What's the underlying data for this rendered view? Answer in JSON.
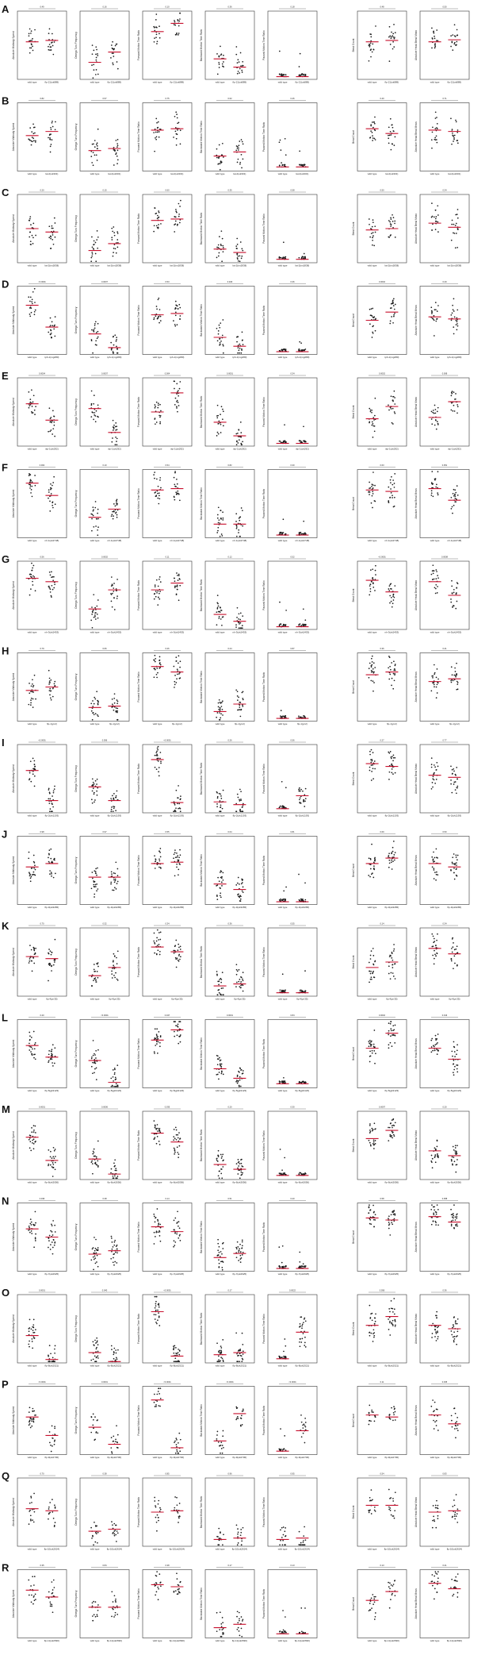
{
  "figure": {
    "metric_axis_labels": [
      "Absolute Midbody Speed",
      "Omega Turn Frequency",
      "Forward Motion Time Ratio",
      "Backward Motion Time Ratio",
      "Paused Motion Time Ratio",
      "Bend Count",
      "Absolute Head Bend Mean"
    ],
    "colors": {
      "point": "#1a1a1a",
      "median": "#c8102e",
      "axis": "#333333",
      "text": "#222222"
    }
  },
  "chart_data": {
    "type": "scatter",
    "plot_style": "strip plot with median line (red)",
    "grid": false,
    "rows": [
      {
        "panel": "A",
        "mutant": "flp-21(ok889)",
        "pvalues": [
          "0.49",
          "0.16",
          "0.10",
          "0.36",
          "0.18",
          "0.48",
          "0.50"
        ],
        "wt_median": [
          0.55,
          0.25,
          0.7,
          0.3,
          0.04,
          0.55,
          0.55
        ],
        "mut_median": [
          0.57,
          0.4,
          0.82,
          0.18,
          0.04,
          0.57,
          0.58
        ]
      },
      {
        "panel": "B",
        "mutant": "lat-2(ok301)",
        "pvalues": [
          "0.82",
          "0.57",
          "0.75",
          "0.62",
          "0.46",
          "0.40",
          "0.71"
        ],
        "wt_median": [
          0.52,
          0.3,
          0.6,
          0.22,
          0.06,
          0.62,
          0.6
        ],
        "mut_median": [
          0.58,
          0.33,
          0.62,
          0.28,
          0.06,
          0.55,
          0.58
        ]
      },
      {
        "panel": "C",
        "mutant": "lat-2(tm2838)",
        "pvalues": [
          "0.20",
          "0.15",
          "0.60",
          "0.35",
          "0.58",
          "0.50",
          "0.34"
        ],
        "wt_median": [
          0.5,
          0.18,
          0.62,
          0.2,
          0.05,
          0.48,
          0.58
        ],
        "mut_median": [
          0.45,
          0.28,
          0.64,
          0.15,
          0.05,
          0.5,
          0.52
        ]
      },
      {
        "panel": "D",
        "mutant": "tph-1(mg280)",
        "pvalues": [
          "<0.0001",
          "0.0007",
          "0.53",
          "0.029",
          "0.36",
          "0.0002",
          "0.29"
        ],
        "wt_median": [
          0.72,
          0.3,
          0.58,
          0.25,
          0.04,
          0.5,
          0.55
        ],
        "mut_median": [
          0.4,
          0.1,
          0.6,
          0.12,
          0.04,
          0.62,
          0.52
        ]
      },
      {
        "panel": "E",
        "mutant": "nlp-1(ok292)",
        "pvalues": [
          "0.0004",
          "0.0007",
          "0.004",
          "0.0001",
          "0.34",
          "0.0002",
          "0.008"
        ],
        "wt_median": [
          0.62,
          0.55,
          0.5,
          0.35,
          0.04,
          0.4,
          0.42
        ],
        "mut_median": [
          0.38,
          0.2,
          0.78,
          0.15,
          0.04,
          0.58,
          0.65
        ]
      },
      {
        "panel": "F",
        "mutant": "nlr-1(ok2748)",
        "pvalues": [
          "0.002",
          "0.10",
          "0.54",
          "0.82",
          "0.30",
          "0.63",
          "0.051"
        ],
        "wt_median": [
          0.8,
          0.3,
          0.7,
          0.2,
          0.04,
          0.7,
          0.72
        ],
        "mut_median": [
          0.62,
          0.42,
          0.72,
          0.2,
          0.04,
          0.68,
          0.55
        ]
      },
      {
        "panel": "G",
        "mutant": "nlr-3(ok2453)",
        "pvalues": [
          "0.56",
          "0.0002",
          "0.11",
          "0.12",
          "0.52",
          "<0.0001",
          "0.0008"
        ],
        "wt_median": [
          0.75,
          0.3,
          0.58,
          0.22,
          0.04,
          0.72,
          0.7
        ],
        "mut_median": [
          0.7,
          0.58,
          0.68,
          0.12,
          0.04,
          0.55,
          0.5
        ]
      },
      {
        "panel": "H",
        "mutant": "flp-1(yn2)",
        "pvalues": [
          "0.79",
          "0.66",
          "0.26",
          "0.24",
          "0.87",
          "0.36",
          "0.41"
        ],
        "wt_median": [
          0.45,
          0.2,
          0.8,
          0.14,
          0.04,
          0.68,
          0.58
        ],
        "mut_median": [
          0.5,
          0.22,
          0.72,
          0.25,
          0.04,
          0.72,
          0.62
        ]
      },
      {
        "panel": "I",
        "mutant": "flp-2(ok1193)",
        "pvalues": [
          "<0.0001",
          "0.056",
          "<0.0001",
          "0.26",
          "0.56",
          "0.27",
          "0.77"
        ],
        "wt_median": [
          0.62,
          0.38,
          0.78,
          0.16,
          0.06,
          0.72,
          0.55
        ],
        "mut_median": [
          0.18,
          0.18,
          0.15,
          0.12,
          0.25,
          0.68,
          0.52
        ]
      },
      {
        "panel": "J",
        "mutant": "flp-3(ok3265)",
        "pvalues": [
          "0.98",
          "0.97",
          "0.55",
          "0.64",
          "0.81",
          "0.69",
          "0.50"
        ],
        "wt_median": [
          0.55,
          0.4,
          0.6,
          0.3,
          0.04,
          0.6,
          0.6
        ],
        "mut_median": [
          0.6,
          0.4,
          0.62,
          0.22,
          0.04,
          0.68,
          0.55
        ]
      },
      {
        "panel": "K",
        "mutant": "flp-4(yn35)",
        "pvalues": [
          "0.70",
          "0.32",
          "0.34",
          "0.36",
          "0.55",
          "0.14",
          "0.34"
        ],
        "wt_median": [
          0.58,
          0.3,
          0.72,
          0.15,
          0.05,
          0.42,
          0.7
        ],
        "mut_median": [
          0.55,
          0.42,
          0.65,
          0.18,
          0.05,
          0.5,
          0.62
        ]
      },
      {
        "panel": "L",
        "mutant": "flp-5(gk3123)",
        "pvalues": [
          "0.20",
          "<0.0001",
          "0.047",
          "0.0001",
          "0.84",
          "0.0002",
          "0.016"
        ],
        "wt_median": [
          0.62,
          0.4,
          0.7,
          0.28,
          0.06,
          0.58,
          0.58
        ],
        "mut_median": [
          0.45,
          0.08,
          0.85,
          0.14,
          0.06,
          0.8,
          0.42
        ]
      },
      {
        "panel": "M",
        "mutant": "flp-6(ok3056)",
        "pvalues": [
          "0.0001",
          "0.0006",
          "0.035",
          "0.20",
          "0.30",
          "0.0097",
          "0.20"
        ],
        "wt_median": [
          0.62,
          0.3,
          0.68,
          0.22,
          0.06,
          0.6,
          0.42
        ],
        "mut_median": [
          0.28,
          0.08,
          0.55,
          0.15,
          0.06,
          0.72,
          0.35
        ]
      },
      {
        "panel": "N",
        "mutant": "flp-7(ok2625)",
        "pvalues": [
          "0.036",
          "0.38",
          "0.14",
          "0.51",
          "0.20",
          "0.58",
          "0.058"
        ],
        "wt_median": [
          0.62,
          0.25,
          0.65,
          0.2,
          0.04,
          0.78,
          0.8
        ],
        "mut_median": [
          0.5,
          0.3,
          0.58,
          0.26,
          0.04,
          0.75,
          0.72
        ]
      },
      {
        "panel": "O",
        "mutant": "flp-8(ok2521)",
        "pvalues": [
          "0.0001",
          "0.040",
          "<0.0001",
          "0.17",
          "0.0022",
          "0.056",
          "0.36"
        ],
        "wt_median": [
          0.4,
          0.15,
          0.75,
          0.12,
          0.06,
          0.55,
          0.55
        ],
        "mut_median": [
          0.05,
          0.02,
          0.1,
          0.15,
          0.45,
          0.68,
          0.5
        ]
      },
      {
        "panel": "P",
        "mutant": "flp-9(ok2730)",
        "pvalues": [
          "<0.0001",
          "0.0001",
          "<0.0001",
          "<0.0001",
          "<0.0001",
          "0.11",
          "0.035"
        ],
        "wt_median": [
          0.55,
          0.4,
          0.8,
          0.2,
          0.05,
          0.58,
          0.58
        ],
        "mut_median": [
          0.28,
          0.15,
          0.1,
          0.6,
          0.35,
          0.55,
          0.45
        ]
      },
      {
        "panel": "Q",
        "mutant": "flp-10(ok2624)",
        "pvalues": [
          "0.70",
          "0.38",
          "0.85",
          "0.96",
          "0.95",
          "0.54",
          "0.83"
        ],
        "wt_median": [
          0.55,
          0.22,
          0.5,
          0.1,
          0.1,
          0.6,
          0.5
        ],
        "mut_median": [
          0.52,
          0.25,
          0.52,
          0.12,
          0.12,
          0.6,
          0.52
        ]
      },
      {
        "panel": "R",
        "mutant": "flp-11(ok2690)",
        "pvalues": [
          "0.35",
          "0.84",
          "0.38",
          "0.17",
          "0.13",
          "0.13",
          "0.21"
        ],
        "wt_median": [
          0.7,
          0.45,
          0.78,
          0.15,
          0.06,
          0.55,
          0.8
        ],
        "mut_median": [
          0.6,
          0.45,
          0.75,
          0.2,
          0.06,
          0.68,
          0.72
        ]
      }
    ]
  }
}
